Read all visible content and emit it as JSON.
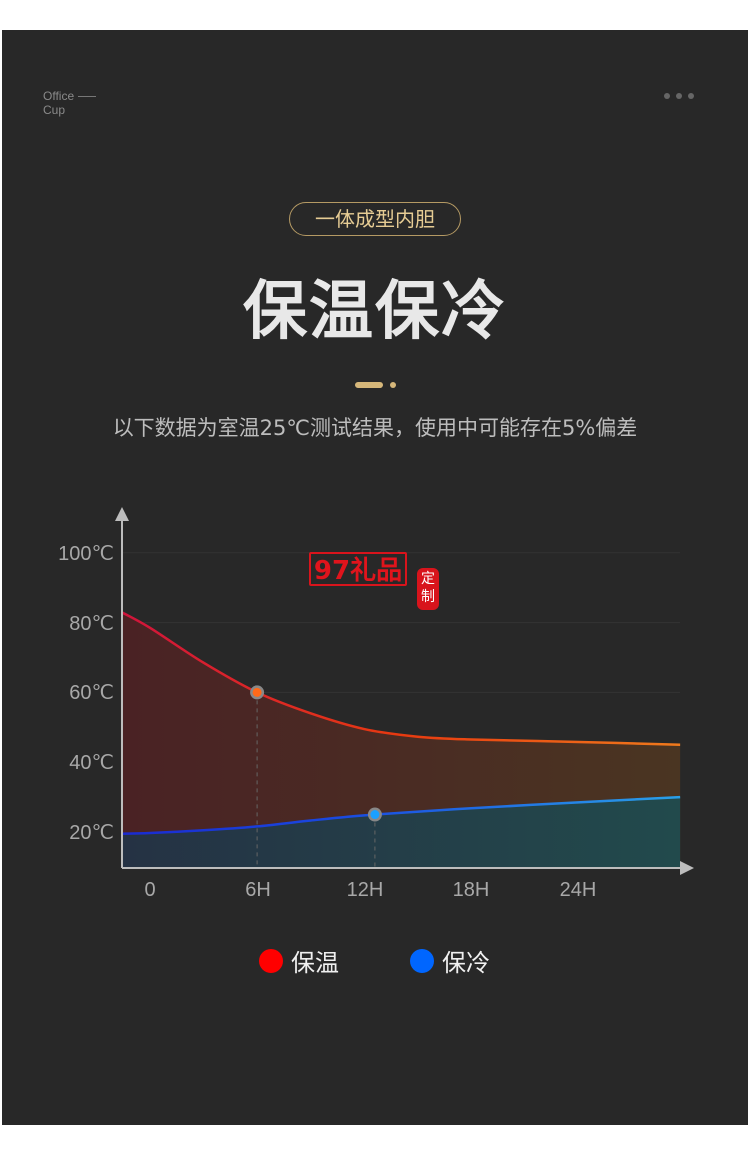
{
  "header": {
    "brand_line1": "Office",
    "brand_line2": "Cup",
    "menu_icon": "more-dots-icon"
  },
  "badge": "一体成型内胆",
  "title": "保温保冷",
  "subtitle": "以下数据为室温25℃测试结果，使用中可能存在5%偏差",
  "watermark": {
    "stamp": "97礼品",
    "seal": "定制"
  },
  "chart_data": {
    "type": "area",
    "title": "",
    "xlabel": "",
    "ylabel": "",
    "x_tick_labels": [
      "0",
      "6H",
      "12H",
      "18H",
      "24H"
    ],
    "x_ticks": [
      0,
      6,
      12,
      18,
      24
    ],
    "y_tick_labels": [
      "100℃",
      "80℃",
      "60℃",
      "40℃",
      "20℃"
    ],
    "y_ticks": [
      100,
      80,
      60,
      40,
      20
    ],
    "xlim": [
      -1.6,
      31
    ],
    "ylim": [
      9.7,
      110
    ],
    "grid": true,
    "legend": "bottom",
    "series": [
      {
        "name": "保温",
        "color": "#ff0000",
        "line_colors": [
          "#d0143c",
          "#f07a1c"
        ],
        "x": [
          -1.6,
          0,
          3,
          6,
          9,
          12,
          15,
          18,
          24,
          29.7
        ],
        "y": [
          83,
          78.5,
          68.5,
          60,
          54,
          49.5,
          47.3,
          46.5,
          45.8,
          45
        ],
        "marker": {
          "x": 6,
          "y": 60
        }
      },
      {
        "name": "保冷",
        "color": "#0066ff",
        "line_colors": [
          "#1a2ad0",
          "#2aa0e8"
        ],
        "x": [
          -1.6,
          0,
          3,
          6,
          9,
          12.6,
          18,
          24,
          29.7
        ],
        "y": [
          19.5,
          19.7,
          20.5,
          21.6,
          23.3,
          25,
          26.8,
          28.5,
          30
        ],
        "marker": {
          "x": 12.6,
          "y": 25
        }
      }
    ]
  }
}
